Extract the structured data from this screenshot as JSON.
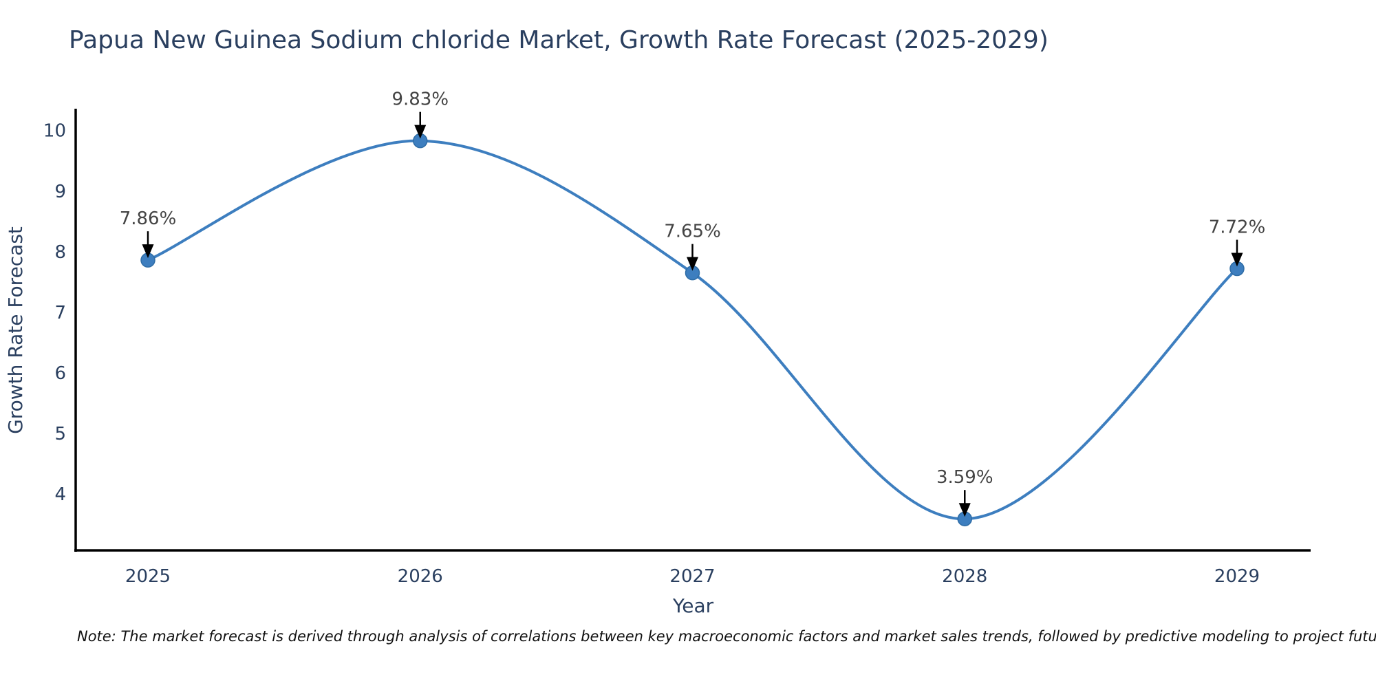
{
  "title": "Papua New Guinea Sodium chloride Market, Growth Rate Forecast (2025-2029)",
  "note": "Note: The market forecast is derived through analysis of correlations between key macroeconomic factors and market sales trends, followed by predictive modeling to project future sales",
  "chart_data": {
    "type": "line",
    "line_shape": "spline",
    "title": "Papua New Guinea Sodium chloride Market, Growth Rate Forecast (2025-2029)",
    "xlabel": "Year",
    "ylabel": "Growth Rate Forecast",
    "x": [
      2025,
      2026,
      2027,
      2028,
      2029
    ],
    "y": [
      7.86,
      9.83,
      7.65,
      3.59,
      7.72
    ],
    "point_labels": [
      "7.86%",
      "9.83%",
      "7.65%",
      "3.59%",
      "7.72%"
    ],
    "xticks": [
      "2025",
      "2026",
      "2027",
      "2028",
      "2029"
    ],
    "yticks": [
      "4",
      "5",
      "6",
      "7",
      "8",
      "9",
      "10"
    ],
    "ytick_values": [
      4,
      5,
      6,
      7,
      8,
      9,
      10
    ],
    "xlim": [
      2025,
      2029
    ],
    "ylim": [
      3.07,
      10.36
    ],
    "grid": false,
    "legend_position": "none",
    "marker_style": "circle",
    "annotation_arrows": "down",
    "colors": {
      "line": "#3d7ebf",
      "marker_fill": "#3d7ebf",
      "marker_edge": "#2e6ca5",
      "axis_line": "#000000",
      "label_text": "#2a3f5f",
      "annotation_text": "#444444",
      "arrow": "#000000",
      "note_text": "#111111",
      "background": "#ffffff"
    }
  }
}
